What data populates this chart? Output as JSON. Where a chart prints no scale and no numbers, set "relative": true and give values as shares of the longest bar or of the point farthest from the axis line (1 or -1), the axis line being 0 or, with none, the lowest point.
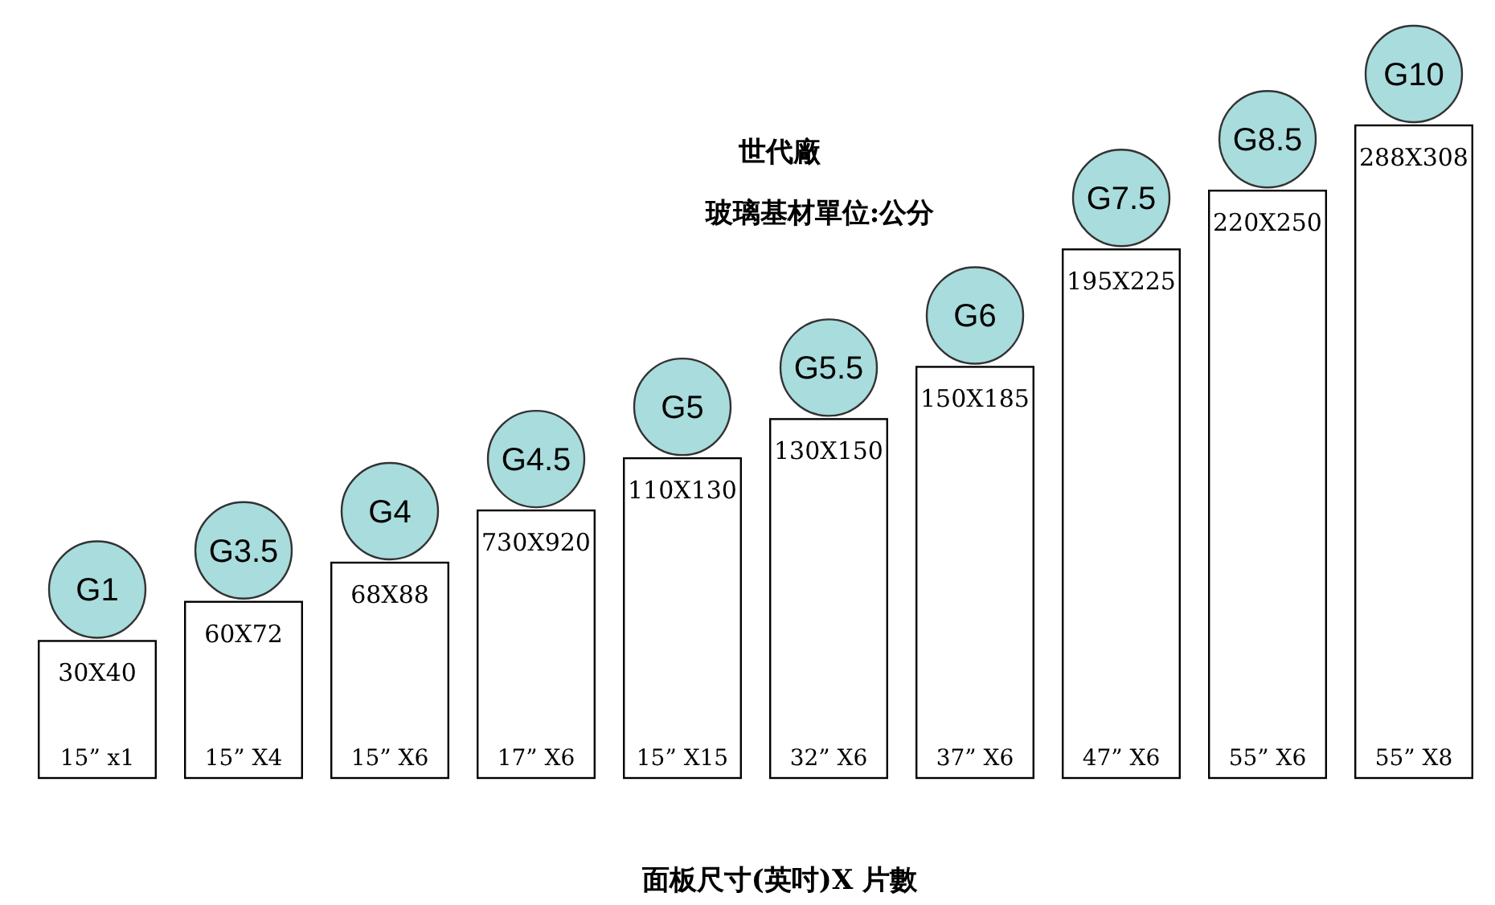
{
  "chart_data": {
    "type": "bar",
    "relative": true,
    "title": "世代廠",
    "subtitle": "玻璃基材單位:公分",
    "xlabel": "面板尺寸(英吋)X 片數",
    "categories": [
      "G1",
      "G3.5",
      "G4",
      "G4.5",
      "G5",
      "G5.5",
      "G6",
      "G7.5",
      "G8.5",
      "G10"
    ],
    "values": [
      0.21,
      0.27,
      0.33,
      0.41,
      0.49,
      0.55,
      0.63,
      0.81,
      0.9,
      1
    ],
    "color": "#ffffff",
    "annotations": [
      "30X40",
      "60X72",
      "68X88",
      "730X920",
      "110X130",
      "130X150",
      "150X185",
      "195X225",
      "220X250",
      "288X308",
      "15” x1",
      "15” X4",
      "15” X6",
      "17” X6",
      "15” X15",
      "32” X6",
      "37” X6",
      "47” X6",
      "55” X6",
      "55” X8"
    ]
  }
}
